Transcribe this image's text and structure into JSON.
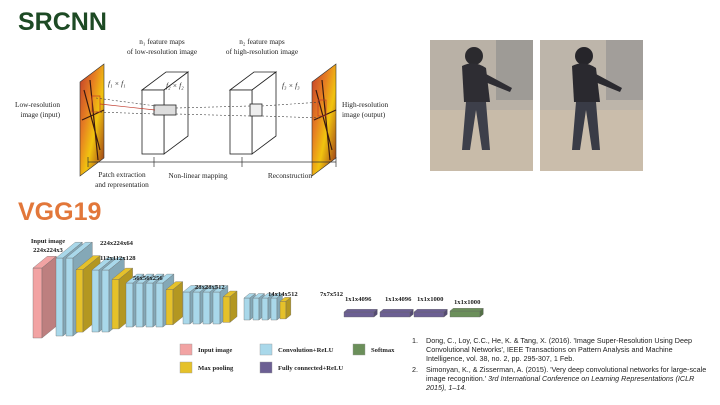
{
  "srcnn": {
    "title": "SRCNN",
    "input_label": [
      "Low-resolution",
      "image (input)"
    ],
    "output_label": [
      "High-resolution",
      "image (output)"
    ],
    "fm1_label": [
      "n₁ feature maps",
      "of low-resolution image"
    ],
    "fm2_label": [
      "n₂ feature maps",
      "of high-resolution image"
    ],
    "k1": "f₁ × f₁",
    "k2": "f₂ × f₂",
    "k3": "f₃ × f₃",
    "stage1": [
      "Patch extraction",
      "and representation"
    ],
    "stage2": "Non-linear mapping",
    "stage3": "Reconstruction"
  },
  "vgg": {
    "title": "VGG19",
    "input_size": [
      "Input image",
      "224x224x3"
    ],
    "sizes": [
      "224x224x64",
      "112x112x128",
      "56x56x256",
      "28x28x512",
      "14x14x512",
      "7x7x512",
      "1x1x4096",
      "1x1x4096",
      "1x1x1000",
      "1x1x1000"
    ],
    "legend": [
      "Input image",
      "Convolution+ReLU",
      "Softmax",
      "Max pooling",
      "Fully connected+ReLU"
    ]
  },
  "references": [
    {
      "num": "1.",
      "text": "Dong, C., Loy, C.C., He, K. & Tang, X. (2016). 'Image Super-Resolution Using Deep Convolutional Networks', IEEE Transactions on Pattern Analysis and Machine Intelligence, vol. 38, no. 2, pp. 295-307, 1 Feb.",
      "italic": ""
    },
    {
      "num": "2.",
      "text": "Simonyan, K., & Zisserman, A. (2015). 'Very deep convolutional networks for large-scale image recognition.' ",
      "italic": "3rd International Conference on Learning Representations (ICLR 2015), 1–14."
    }
  ],
  "colors": {
    "srcnn_title": "#1d4a24",
    "vgg_title": "#e2773a",
    "input": "#f2a3a3",
    "conv": "#a9d8ea",
    "pool": "#e5c12a",
    "fc": "#6c5f93",
    "softmax": "#6b8f5a"
  }
}
